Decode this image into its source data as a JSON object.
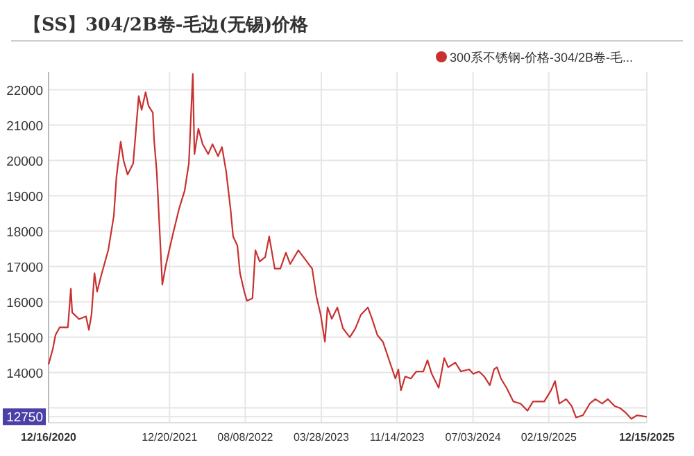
{
  "chart_data": {
    "type": "line",
    "title": "【SS】304/2B卷-毛边(无锡)价格",
    "x": [
      "2020-12-16",
      "2020-12-29",
      "2021-01-06",
      "2021-01-19",
      "2021-02-13",
      "2021-02-22",
      "2021-02-26",
      "2021-03-19",
      "2021-04-09",
      "2021-04-18",
      "2021-04-26",
      "2021-05-05",
      "2021-05-13",
      "2021-05-26",
      "2021-06-16",
      "2021-07-03",
      "2021-07-11",
      "2021-07-24",
      "2021-08-02",
      "2021-08-14",
      "2021-08-31",
      "2021-09-17",
      "2021-09-26",
      "2021-10-08",
      "2021-10-17",
      "2021-10-30",
      "2021-11-03",
      "2021-11-11",
      "2021-11-28",
      "2021-12-07",
      "2021-12-19",
      "2022-01-01",
      "2022-01-18",
      "2022-02-04",
      "2022-02-17",
      "2022-03-01",
      "2022-03-06",
      "2022-03-18",
      "2022-03-31",
      "2022-04-17",
      "2022-04-30",
      "2022-05-17",
      "2022-05-29",
      "2022-06-11",
      "2022-06-24",
      "2022-07-02",
      "2022-07-15",
      "2022-07-23",
      "2022-08-05",
      "2022-08-13",
      "2022-08-30",
      "2022-09-08",
      "2022-09-21",
      "2022-10-08",
      "2022-10-20",
      "2022-11-06",
      "2022-11-23",
      "2022-12-10",
      "2022-12-23",
      "2023-01-17",
      "2023-02-07",
      "2023-02-28",
      "2023-03-13",
      "2023-03-26",
      "2023-04-08",
      "2023-04-16",
      "2023-04-29",
      "2023-05-16",
      "2023-06-02",
      "2023-06-23",
      "2023-07-10",
      "2023-07-27",
      "2023-08-17",
      "2023-08-30",
      "2023-09-15",
      "2023-10-02",
      "2023-11-09",
      "2023-11-18",
      "2023-11-26",
      "2023-12-09",
      "2023-12-26",
      "2024-01-12",
      "2024-02-02",
      "2024-02-15",
      "2024-02-28",
      "2024-03-20",
      "2024-04-06",
      "2024-04-18",
      "2024-05-10",
      "2024-05-27",
      "2024-06-21",
      "2024-07-04",
      "2024-07-21",
      "2024-08-06",
      "2024-08-23",
      "2024-09-05",
      "2024-09-14",
      "2024-09-26",
      "2024-10-13",
      "2024-11-03",
      "2024-11-25",
      "2024-12-16",
      "2025-01-02",
      "2025-02-05",
      "2025-02-26",
      "2025-03-10",
      "2025-03-23",
      "2025-04-13",
      "2025-04-30",
      "2025-05-13",
      "2025-06-03",
      "2025-06-24",
      "2025-07-11",
      "2025-08-01",
      "2025-08-18",
      "2025-09-08",
      "2025-09-25",
      "2025-10-12",
      "2025-10-29",
      "2025-11-15",
      "2025-12-15"
    ],
    "series": [
      {
        "name": "300系不锈钢-价格-304/2B卷-毛...",
        "color": "#c8312f",
        "values": [
          14230,
          14670,
          15060,
          15280,
          15280,
          16370,
          15700,
          15510,
          15590,
          15210,
          15640,
          16810,
          16290,
          16760,
          17460,
          18430,
          19530,
          20530,
          19990,
          19600,
          19910,
          21820,
          21430,
          21930,
          21540,
          21350,
          20570,
          19680,
          16490,
          16950,
          17460,
          17980,
          18630,
          19140,
          19920,
          22450,
          20180,
          20900,
          20460,
          20180,
          20460,
          20120,
          20380,
          19670,
          18630,
          17850,
          17590,
          16810,
          16290,
          16030,
          16100,
          17460,
          17140,
          17270,
          17850,
          16940,
          16940,
          17390,
          17070,
          17460,
          17200,
          16940,
          16160,
          15640,
          14870,
          15840,
          15520,
          15840,
          15250,
          15000,
          15250,
          15640,
          15840,
          15520,
          15060,
          14870,
          13830,
          14090,
          13500,
          13890,
          13830,
          14030,
          14030,
          14350,
          13960,
          13570,
          14410,
          14150,
          14280,
          14030,
          14090,
          13960,
          14030,
          13890,
          13640,
          14090,
          14150,
          13830,
          13570,
          13180,
          13120,
          12920,
          13180,
          13180,
          13500,
          13760,
          13120,
          13250,
          13050,
          12730,
          12790,
          13120,
          13250,
          13120,
          13250,
          13050,
          12990,
          12860,
          12690,
          12790,
          12750
        ]
      }
    ],
    "xlim": [
      "2020-12-16",
      "2025-12-15"
    ],
    "xticks": [
      {
        "value": "2020-12-16",
        "label": "12/16/2020"
      },
      {
        "value": "2021-12-20",
        "label": "12/20/2021"
      },
      {
        "value": "2022-08-08",
        "label": "08/08/2022"
      },
      {
        "value": "2023-03-28",
        "label": "03/28/2023"
      },
      {
        "value": "2023-11-14",
        "label": "11/14/2023"
      },
      {
        "value": "2024-07-03",
        "label": "07/03/2024"
      },
      {
        "value": "2025-02-19",
        "label": "02/19/2025"
      },
      {
        "value": "2025-12-15",
        "label": "12/15/2025"
      }
    ],
    "ylim": [
      12580,
      22500
    ],
    "yticks": [
      {
        "value": 12750,
        "label": "12750"
      },
      {
        "value": 13000,
        "label": null
      },
      14000,
      15000,
      16000,
      17000,
      18000,
      19000,
      20000,
      21000,
      22000
    ],
    "grid": true,
    "legend": "top right",
    "marker": "none",
    "line_style": "solid"
  }
}
